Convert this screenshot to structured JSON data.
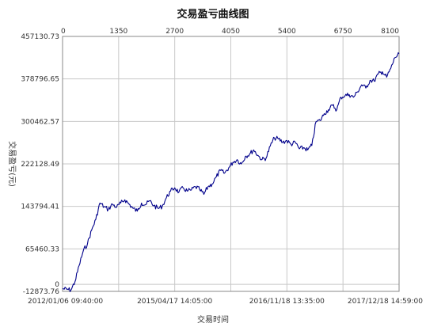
{
  "chart_data": {
    "type": "line",
    "title": "交易盈亏曲线图",
    "xlabel": "交易时间",
    "ylabel": "交易盈亏(元)",
    "y_ticks": [
      -12873.76,
      0,
      65460.33,
      143794.41,
      222128.49,
      300462.57,
      378796.65,
      457130.73
    ],
    "y_tick_labels": [
      "-12873.76",
      "0",
      "65460.33",
      "143794.41",
      "222128.49",
      "300462.57",
      "378796.65",
      "457130.73"
    ],
    "ylim": [
      -12873.76,
      457130.73
    ],
    "x_top_ticks": [
      0,
      1350,
      2700,
      4050,
      5400,
      6750,
      8100
    ],
    "x_top_tick_labels": [
      "0",
      "1350",
      "2700",
      "4050",
      "5400",
      "6750",
      "8100"
    ],
    "x_top_range": [
      0,
      8100
    ],
    "x_bottom_ticks": [
      0,
      2700,
      5400,
      8100
    ],
    "x_bottom_tick_labels": [
      "2012/01/06 09:40:00",
      "2015/04/17 14:05:00",
      "2016/11/18 13:35:00",
      "2017/12/18 14:59:00"
    ],
    "grid": true,
    "series": [
      {
        "color": "#00008b",
        "x": [
          0,
          100,
          200,
          300,
          400,
          500,
          600,
          700,
          800,
          900,
          1000,
          1100,
          1200,
          1300,
          1400,
          1500,
          1600,
          1700,
          1800,
          1900,
          2000,
          2100,
          2200,
          2300,
          2400,
          2500,
          2600,
          2700,
          2800,
          2900,
          3000,
          3100,
          3200,
          3300,
          3400,
          3500,
          3600,
          3700,
          3800,
          3900,
          4000,
          4100,
          4200,
          4300,
          4400,
          4500,
          4600,
          4700,
          4800,
          4900,
          5000,
          5100,
          5200,
          5300,
          5400,
          5500,
          5600,
          5700,
          5800,
          5900,
          6000,
          6100,
          6200,
          6300,
          6400,
          6500,
          6600,
          6700,
          6800,
          6900,
          7000,
          7100,
          7200,
          7300,
          7400,
          7500,
          7600,
          7700,
          7800,
          7900,
          8000,
          8100
        ],
        "values": [
          -8000,
          -9000,
          -10500,
          5000,
          35000,
          62000,
          75000,
          100000,
          120000,
          150000,
          143000,
          138000,
          148000,
          142000,
          150000,
          156000,
          148000,
          140000,
          135000,
          150000,
          147000,
          154000,
          145000,
          140000,
          144000,
          160000,
          172000,
          178000,
          170000,
          178000,
          172000,
          174000,
          180000,
          175000,
          166000,
          180000,
          185000,
          198000,
          210000,
          205000,
          215000,
          225000,
          230000,
          222000,
          236000,
          240000,
          248000,
          238000,
          230000,
          233000,
          255000,
          270000,
          268000,
          262000,
          265000,
          258000,
          262000,
          250000,
          252000,
          248000,
          256000,
          300000,
          302000,
          315000,
          322000,
          330000,
          322000,
          345000,
          348000,
          350000,
          345000,
          355000,
          368000,
          362000,
          376000,
          375000,
          388000,
          392000,
          382000,
          398000,
          418000,
          425000
        ]
      }
    ]
  }
}
